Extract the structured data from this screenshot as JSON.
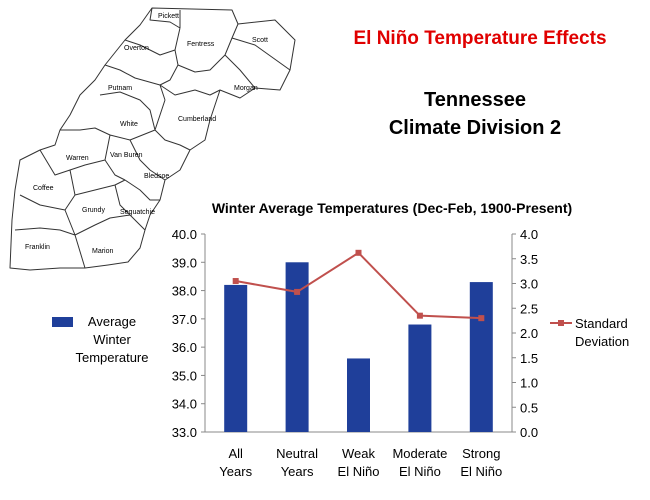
{
  "header": {
    "title": "El Niño Temperature Effects",
    "subtitle_line1": "Tennessee",
    "subtitle_line2": "Climate Division 2"
  },
  "map": {
    "counties": [
      "Pickett",
      "Scott",
      "Overton",
      "Fentress",
      "Putnam",
      "Morgan",
      "White",
      "Cumberland",
      "Warren",
      "Van Buren",
      "Bledsoe",
      "Coffee",
      "Grundy",
      "Sequatchie",
      "Franklin",
      "Marion"
    ],
    "fill_color": "#ffffff",
    "border_color": "#333333"
  },
  "chart_data": {
    "type": "bar",
    "title": "Winter Average Temperatures (Dec-Feb, 1900-Present)",
    "categories": [
      [
        "All",
        "Years"
      ],
      [
        "Neutral",
        "Years"
      ],
      [
        "Weak",
        "El Niño"
      ],
      [
        "Moderate",
        "El Niño"
      ],
      [
        "Strong",
        "El Niño"
      ]
    ],
    "ylim": [
      33.0,
      40.0
    ],
    "y_ticks": [
      "40.0",
      "39.0",
      "38.0",
      "37.0",
      "36.0",
      "35.0",
      "34.0",
      "33.0"
    ],
    "y2lim": [
      0.0,
      4.0
    ],
    "y2_ticks": [
      "4.0",
      "3.5",
      "3.0",
      "2.5",
      "2.0",
      "1.5",
      "1.0",
      "0.5",
      "0.0"
    ],
    "grid": false,
    "series": [
      {
        "name_lines": [
          "Average",
          "Winter",
          "Temperature"
        ],
        "kind": "bar",
        "axis": "left",
        "color": "#1f3f9a",
        "values": [
          38.2,
          39.0,
          35.6,
          36.8,
          38.3
        ]
      },
      {
        "name_lines": [
          "Standard",
          "Deviation"
        ],
        "kind": "line",
        "axis": "right",
        "color": "#c0504d",
        "values": [
          3.05,
          2.83,
          3.62,
          2.35,
          2.3
        ]
      }
    ]
  }
}
